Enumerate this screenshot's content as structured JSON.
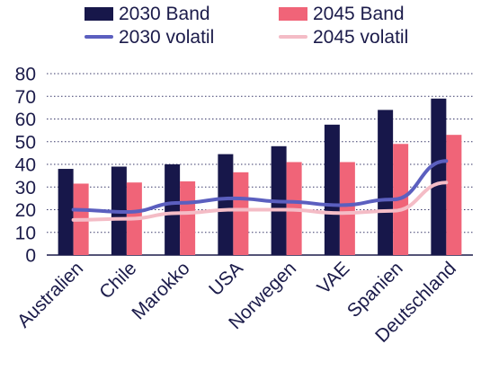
{
  "chart_data": {
    "type": "bar",
    "categories": [
      "Australien",
      "Chile",
      "Marokko",
      "USA",
      "Norwegen",
      "VAE",
      "Spanien",
      "Deutschland"
    ],
    "series": [
      {
        "name": "2030 Band",
        "kind": "bar",
        "color": "#17174a",
        "values": [
          38,
          39,
          40,
          44.5,
          48,
          57.5,
          64,
          69
        ]
      },
      {
        "name": "2045 Band",
        "kind": "bar",
        "color": "#f06478",
        "values": [
          31.5,
          32,
          32.5,
          36.5,
          41,
          41,
          49,
          53
        ]
      },
      {
        "name": "2030 volatil",
        "kind": "line",
        "color": "#5b5fbf",
        "values": [
          20,
          19,
          23,
          25,
          23.5,
          22,
          24.5,
          41.5
        ]
      },
      {
        "name": "2045 volatil",
        "kind": "line",
        "color": "#f4bcc6",
        "values": [
          15.5,
          16,
          18.5,
          20,
          20,
          18.5,
          19.5,
          32
        ]
      }
    ],
    "yticks": [
      0,
      10,
      20,
      30,
      40,
      50,
      60,
      70,
      80
    ],
    "ylim": [
      0,
      80
    ],
    "grid": "dotted horizontal",
    "legend": "top",
    "title": "",
    "xlabel": "",
    "ylabel": ""
  }
}
